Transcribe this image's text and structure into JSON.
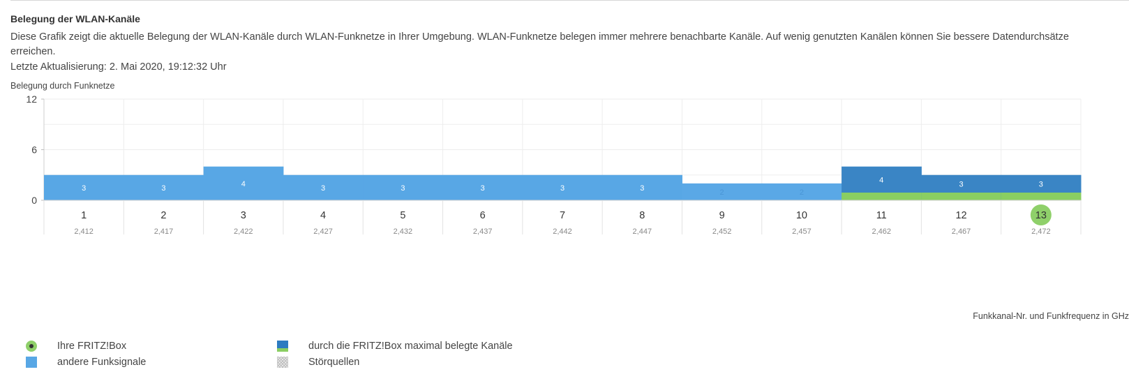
{
  "section": {
    "title": "Belegung der WLAN-Kanäle",
    "description": "Diese Grafik zeigt die aktuelle Belegung der WLAN-Kanäle durch WLAN-Funknetze in Ihrer Umgebung. WLAN-Funknetze belegen immer mehrere benachbarte Kanäle. Auf wenig genutzten Kanälen können Sie bessere Datendurchsätze erreichen.",
    "last_update": "Letzte Aktualisierung: 2. Mai 2020, 19:12:32 Uhr"
  },
  "chart_data": {
    "type": "bar",
    "ylabel": "Belegung durch Funknetze",
    "xlabel": "Funkkanal-Nr. und Funkfrequenz in GHz",
    "ylim": [
      0,
      12
    ],
    "yticks": [
      "0",
      "6",
      "12"
    ],
    "categories": [
      "1",
      "2",
      "3",
      "4",
      "5",
      "6",
      "7",
      "8",
      "9",
      "10",
      "11",
      "12",
      "13"
    ],
    "frequencies": [
      "2,412",
      "2,417",
      "2,422",
      "2,427",
      "2,432",
      "2,437",
      "2,442",
      "2,447",
      "2,452",
      "2,457",
      "2,462",
      "2,467",
      "2,472"
    ],
    "values": [
      3,
      3,
      4,
      3,
      3,
      3,
      3,
      3,
      2,
      2,
      4,
      3,
      3
    ],
    "fritzbox_occupied": [
      false,
      false,
      false,
      false,
      false,
      false,
      false,
      false,
      false,
      false,
      true,
      true,
      true
    ],
    "fritzbox_channel": "13",
    "grid": true,
    "colors": {
      "other": "#58a7e5",
      "fritzbox_max": "#3a85c5",
      "fritzbox_base": "#8ace62",
      "own_channel": "#8fd06a"
    }
  },
  "legend": {
    "own_fritzbox": "Ihre FRITZ!Box",
    "other_signals": "andere Funksignale",
    "fritzbox_max": "durch die FRITZ!Box maximal belegte Kanäle",
    "interference": "Störquellen"
  }
}
